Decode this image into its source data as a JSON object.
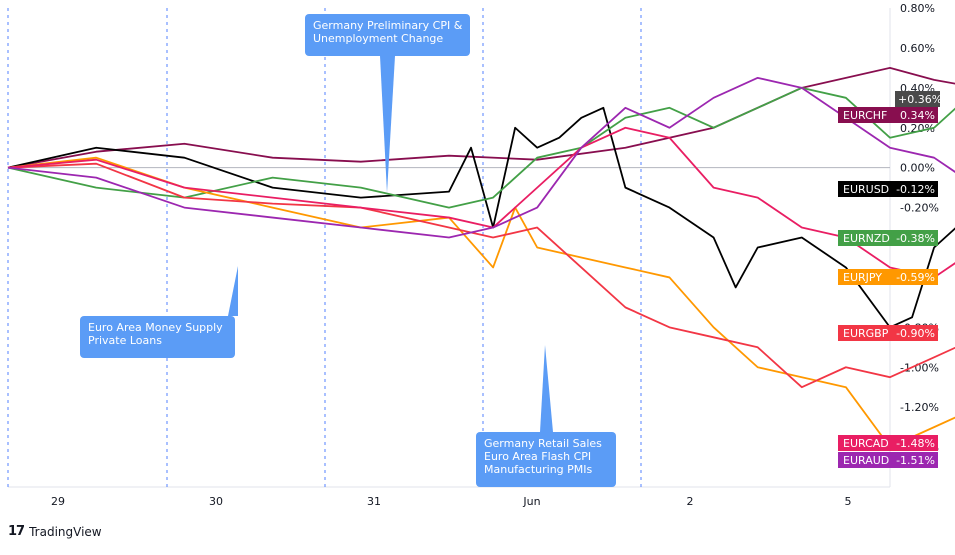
{
  "app": {
    "brand": "TradingView",
    "brand_logo": "17"
  },
  "chart_data": {
    "type": "line",
    "title": "",
    "x_ticks": [
      "29",
      "30",
      "31",
      "Jun",
      "2",
      "5"
    ],
    "y_ticks": [
      "0.80%",
      "0.60%",
      "0.40%",
      "0.20%",
      "0.00%",
      "-0.20%",
      "-0.80%",
      "-1.00%",
      "-1.20%",
      "-1.40%"
    ],
    "ylim": [
      -1.6,
      0.8
    ],
    "grid": "dashed vertical session lines",
    "series": [
      {
        "name": "EURCHF",
        "color": "#880e4f",
        "last": "0.34%",
        "extra_badge": "+0.36%",
        "values": [
          [
            0,
            0
          ],
          [
            20,
            0.08
          ],
          [
            40,
            0.12
          ],
          [
            60,
            0.05
          ],
          [
            80,
            0.03
          ],
          [
            100,
            0.06
          ],
          [
            120,
            0.04
          ],
          [
            140,
            0.1
          ],
          [
            160,
            0.2
          ],
          [
            180,
            0.4
          ],
          [
            200,
            0.5
          ],
          [
            210,
            0.44
          ],
          [
            220,
            0.4
          ],
          [
            230,
            0.35
          ],
          [
            240,
            0.3
          ],
          [
            250,
            0.42
          ],
          [
            260,
            0.5
          ],
          [
            265,
            0.6
          ],
          [
            270,
            0.55
          ],
          [
            280,
            0.45
          ],
          [
            290,
            0.5
          ],
          [
            300,
            0.4
          ],
          [
            310,
            0.45
          ],
          [
            320,
            0.42
          ],
          [
            330,
            0.4
          ],
          [
            340,
            0.38
          ],
          [
            350,
            0.5
          ],
          [
            360,
            0.48
          ],
          [
            370,
            0.42
          ],
          [
            380,
            0.36
          ],
          [
            390,
            0.34
          ]
        ]
      },
      {
        "name": "EURUSD",
        "color": "#000000",
        "last": "-0.12%",
        "values": [
          [
            0,
            0
          ],
          [
            20,
            0.1
          ],
          [
            40,
            0.05
          ],
          [
            60,
            -0.1
          ],
          [
            80,
            -0.15
          ],
          [
            100,
            -0.12
          ],
          [
            105,
            0.1
          ],
          [
            110,
            -0.3
          ],
          [
            115,
            0.2
          ],
          [
            120,
            0.1
          ],
          [
            125,
            0.15
          ],
          [
            130,
            0.25
          ],
          [
            135,
            0.3
          ],
          [
            140,
            -0.1
          ],
          [
            150,
            -0.2
          ],
          [
            160,
            -0.35
          ],
          [
            165,
            -0.6
          ],
          [
            170,
            -0.4
          ],
          [
            180,
            -0.35
          ],
          [
            190,
            -0.5
          ],
          [
            200,
            -0.8
          ],
          [
            205,
            -0.75
          ],
          [
            210,
            -0.4
          ],
          [
            215,
            -0.3
          ],
          [
            220,
            -0.35
          ],
          [
            230,
            -0.25
          ],
          [
            240,
            -0.3
          ],
          [
            245,
            -0.5
          ],
          [
            250,
            -0.2
          ],
          [
            255,
            -0.1
          ],
          [
            260,
            0.3
          ],
          [
            270,
            0.35
          ],
          [
            280,
            0.4
          ],
          [
            290,
            0.42
          ],
          [
            300,
            0.44
          ],
          [
            310,
            0.46
          ],
          [
            320,
            0.42
          ],
          [
            330,
            0.4
          ],
          [
            335,
            0.3
          ],
          [
            340,
            0
          ],
          [
            350,
            -0.12
          ],
          [
            360,
            -0.1
          ],
          [
            370,
            -0.12
          ]
        ]
      },
      {
        "name": "EURNZD",
        "color": "#43a047",
        "last": "-0.38%",
        "values": [
          [
            0,
            0
          ],
          [
            20,
            -0.1
          ],
          [
            40,
            -0.15
          ],
          [
            60,
            -0.05
          ],
          [
            80,
            -0.1
          ],
          [
            100,
            -0.2
          ],
          [
            110,
            -0.15
          ],
          [
            120,
            0.05
          ],
          [
            130,
            0.1
          ],
          [
            140,
            0.25
          ],
          [
            150,
            0.3
          ],
          [
            160,
            0.2
          ],
          [
            170,
            0.3
          ],
          [
            180,
            0.4
          ],
          [
            190,
            0.35
          ],
          [
            200,
            0.15
          ],
          [
            210,
            0.2
          ],
          [
            220,
            0.4
          ],
          [
            230,
            0.3
          ],
          [
            240,
            0.35
          ],
          [
            250,
            0.32
          ],
          [
            260,
            0.2
          ],
          [
            270,
            0.1
          ],
          [
            280,
            0.15
          ],
          [
            290,
            -0.1
          ],
          [
            300,
            0.05
          ],
          [
            310,
            -0.3
          ],
          [
            320,
            -0.4
          ],
          [
            330,
            -0.35
          ],
          [
            340,
            -0.4
          ],
          [
            350,
            -0.38
          ],
          [
            360,
            -0.37
          ]
        ]
      },
      {
        "name": "EURJPY",
        "color": "#ff9800",
        "last": "-0.59%",
        "values": [
          [
            0,
            0
          ],
          [
            20,
            0.05
          ],
          [
            40,
            -0.1
          ],
          [
            60,
            -0.2
          ],
          [
            80,
            -0.3
          ],
          [
            100,
            -0.25
          ],
          [
            110,
            -0.5
          ],
          [
            115,
            -0.2
          ],
          [
            120,
            -0.4
          ],
          [
            130,
            -0.45
          ],
          [
            140,
            -0.5
          ],
          [
            150,
            -0.55
          ],
          [
            160,
            -0.8
          ],
          [
            170,
            -1
          ],
          [
            180,
            -1.05
          ],
          [
            190,
            -1.1
          ],
          [
            200,
            -1.4
          ],
          [
            210,
            -1.3
          ],
          [
            220,
            -1.2
          ],
          [
            230,
            -1.1
          ],
          [
            240,
            -0.9
          ],
          [
            250,
            -0.8
          ],
          [
            260,
            -1.2
          ],
          [
            270,
            -0.95
          ],
          [
            280,
            -0.9
          ],
          [
            290,
            -0.95
          ],
          [
            300,
            -0.85
          ],
          [
            310,
            -0.8
          ],
          [
            320,
            -0.85
          ],
          [
            330,
            -0.75
          ],
          [
            340,
            -0.6
          ],
          [
            350,
            -0.55
          ],
          [
            360,
            -0.58
          ]
        ]
      },
      {
        "name": "EURGBP",
        "color": "#f23645",
        "last": "-0.90%",
        "values": [
          [
            0,
            0
          ],
          [
            20,
            0.02
          ],
          [
            40,
            -0.15
          ],
          [
            60,
            -0.18
          ],
          [
            80,
            -0.2
          ],
          [
            100,
            -0.3
          ],
          [
            110,
            -0.35
          ],
          [
            120,
            -0.3
          ],
          [
            130,
            -0.5
          ],
          [
            140,
            -0.7
          ],
          [
            150,
            -0.8
          ],
          [
            160,
            -0.85
          ],
          [
            170,
            -0.9
          ],
          [
            180,
            -1.1
          ],
          [
            190,
            -1
          ],
          [
            200,
            -1.05
          ],
          [
            210,
            -0.95
          ],
          [
            220,
            -0.85
          ],
          [
            230,
            -0.9
          ],
          [
            240,
            -0.92
          ],
          [
            250,
            -0.85
          ],
          [
            260,
            -0.95
          ],
          [
            270,
            -0.9
          ],
          [
            280,
            -0.95
          ],
          [
            290,
            -1
          ],
          [
            300,
            -1.05
          ],
          [
            310,
            -0.92
          ],
          [
            320,
            -0.95
          ],
          [
            330,
            -0.9
          ],
          [
            340,
            -0.88
          ],
          [
            350,
            -0.9
          ],
          [
            360,
            -0.9
          ]
        ]
      },
      {
        "name": "EURCAD",
        "color": "#e91e63",
        "last": "-1.48%",
        "values": [
          [
            0,
            0
          ],
          [
            20,
            0.04
          ],
          [
            40,
            -0.1
          ],
          [
            60,
            -0.15
          ],
          [
            80,
            -0.2
          ],
          [
            100,
            -0.25
          ],
          [
            110,
            -0.3
          ],
          [
            120,
            -0.1
          ],
          [
            130,
            0.1
          ],
          [
            140,
            0.2
          ],
          [
            150,
            0.15
          ],
          [
            160,
            -0.1
          ],
          [
            170,
            -0.15
          ],
          [
            180,
            -0.3
          ],
          [
            190,
            -0.35
          ],
          [
            200,
            -0.5
          ],
          [
            210,
            -0.55
          ],
          [
            220,
            -0.4
          ],
          [
            230,
            -0.45
          ],
          [
            240,
            -0.6
          ],
          [
            250,
            -0.7
          ],
          [
            260,
            -0.65
          ],
          [
            270,
            -0.8
          ],
          [
            280,
            -0.9
          ],
          [
            290,
            -1
          ],
          [
            300,
            -1.05
          ],
          [
            310,
            -1.1
          ],
          [
            320,
            -1.2
          ],
          [
            330,
            -1.3
          ],
          [
            340,
            -1.35
          ],
          [
            350,
            -1.45
          ],
          [
            360,
            -1.48
          ]
        ]
      },
      {
        "name": "EURAUD",
        "color": "#9c27b0",
        "last": "-1.51%",
        "values": [
          [
            0,
            0
          ],
          [
            20,
            -0.05
          ],
          [
            40,
            -0.2
          ],
          [
            60,
            -0.25
          ],
          [
            80,
            -0.3
          ],
          [
            100,
            -0.35
          ],
          [
            110,
            -0.3
          ],
          [
            120,
            -0.2
          ],
          [
            130,
            0.1
          ],
          [
            140,
            0.3
          ],
          [
            150,
            0.2
          ],
          [
            160,
            0.35
          ],
          [
            170,
            0.45
          ],
          [
            180,
            0.4
          ],
          [
            190,
            0.25
          ],
          [
            200,
            0.1
          ],
          [
            210,
            0.05
          ],
          [
            220,
            -0.1
          ],
          [
            230,
            -0.05
          ],
          [
            240,
            -0.1
          ],
          [
            250,
            0
          ],
          [
            260,
            -0.3
          ],
          [
            270,
            -0.5
          ],
          [
            280,
            -0.7
          ],
          [
            290,
            -0.9
          ],
          [
            300,
            -1
          ],
          [
            310,
            -1.1
          ],
          [
            320,
            -1.2
          ],
          [
            330,
            -1.35
          ],
          [
            340,
            -1.45
          ],
          [
            350,
            -1.5
          ],
          [
            360,
            -1.51
          ]
        ]
      }
    ],
    "annotations": [
      {
        "text": "Germany Preliminary CPI & Unemployment Change",
        "lines": [
          "Germany Preliminary CPI &",
          "Unemployment Change"
        ]
      },
      {
        "text": "Euro Area Money Supply Private Loans",
        "lines": [
          "Euro Area Money Supply",
          "Private Loans"
        ]
      },
      {
        "text": "Germany Retail Sales Euro Area Flash CPI Manufacturing PMIs",
        "lines": [
          "Germany Retail Sales",
          "Euro Area Flash CPI",
          "Manufacturing PMIs"
        ]
      }
    ]
  }
}
